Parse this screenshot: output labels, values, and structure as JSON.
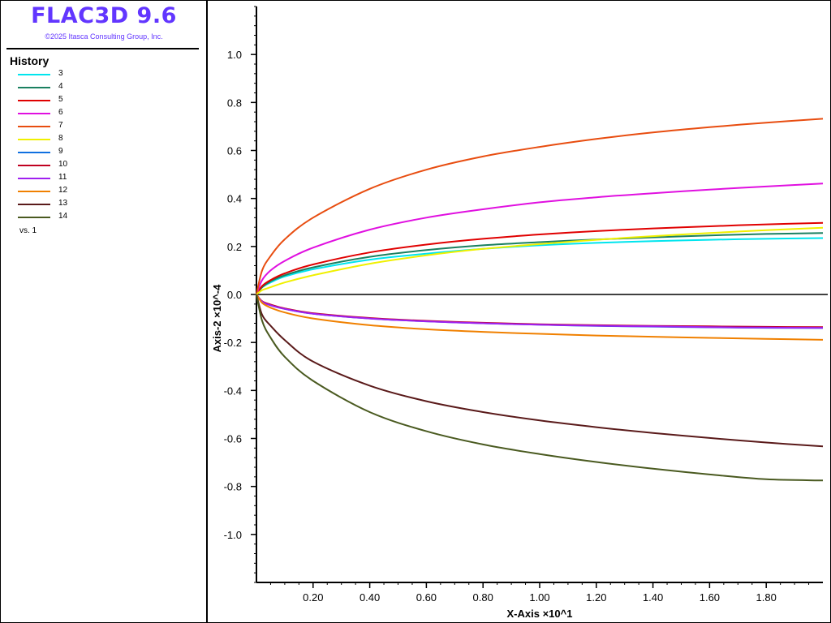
{
  "app": {
    "title": "FLAC3D 9.6",
    "copyright": "©2025 Itasca Consulting Group, Inc."
  },
  "legend": {
    "heading": "History",
    "vs_label": "vs. 1"
  },
  "chart_data": {
    "type": "line",
    "xlabel": "X-Axis ×10^1",
    "ylabel": "Axis-2 ×10^-4",
    "xlim": [
      0,
      2.0
    ],
    "ylim": [
      -1.2,
      1.2
    ],
    "x_ticks": [
      0.2,
      0.4,
      0.6,
      0.8,
      1.0,
      1.2,
      1.4,
      1.6,
      1.8
    ],
    "x_tick_labels": [
      "0.20",
      "0.40",
      "0.60",
      "0.80",
      "1.00",
      "1.20",
      "1.40",
      "1.60",
      "1.80"
    ],
    "y_ticks": [
      1.0,
      0.8,
      0.6,
      0.4,
      0.2,
      0.0,
      -0.2,
      -0.4,
      -0.6,
      -0.8,
      -1.0
    ],
    "y_tick_labels": [
      "1.0",
      "0.8",
      "0.6",
      "0.4",
      "0.2",
      "0.0",
      "-0.2",
      "-0.4",
      "-0.6",
      "-0.8",
      "-1.0"
    ],
    "zero_line": true,
    "grid": false,
    "legend_position": "left-panel",
    "x": [
      0,
      0.02,
      0.05,
      0.1,
      0.2,
      0.4,
      0.6,
      0.8,
      1.0,
      1.2,
      1.4,
      1.6,
      1.8,
      2.0
    ],
    "series": [
      {
        "name": "3",
        "color": "#00e5ee",
        "values": [
          0,
          0.03,
          0.05,
          0.075,
          0.105,
          0.145,
          0.17,
          0.19,
          0.205,
          0.215,
          0.222,
          0.228,
          0.232,
          0.235
        ]
      },
      {
        "name": "4",
        "color": "#1a8060",
        "values": [
          0,
          0.03,
          0.055,
          0.08,
          0.113,
          0.157,
          0.185,
          0.205,
          0.218,
          0.229,
          0.238,
          0.246,
          0.252,
          0.256
        ]
      },
      {
        "name": "5",
        "color": "#e00000",
        "values": [
          0,
          0.035,
          0.06,
          0.088,
          0.125,
          0.175,
          0.208,
          0.232,
          0.25,
          0.264,
          0.275,
          0.284,
          0.292,
          0.298
        ]
      },
      {
        "name": "6",
        "color": "#e010e0",
        "values": [
          0,
          0.06,
          0.1,
          0.14,
          0.195,
          0.27,
          0.32,
          0.355,
          0.384,
          0.405,
          0.422,
          0.437,
          0.45,
          0.462
        ]
      },
      {
        "name": "7",
        "color": "#e84d10",
        "values": [
          0,
          0.1,
          0.16,
          0.23,
          0.32,
          0.44,
          0.52,
          0.575,
          0.615,
          0.648,
          0.675,
          0.697,
          0.716,
          0.732
        ]
      },
      {
        "name": "8",
        "color": "#f0f000",
        "values": [
          0,
          0.018,
          0.03,
          0.05,
          0.08,
          0.128,
          0.163,
          0.19,
          0.21,
          0.228,
          0.243,
          0.256,
          0.268,
          0.278
        ]
      },
      {
        "name": "9",
        "color": "#1070e0",
        "values": [
          0,
          -0.03,
          -0.045,
          -0.06,
          -0.08,
          -0.1,
          -0.112,
          -0.12,
          -0.126,
          -0.131,
          -0.134,
          -0.137,
          -0.139,
          -0.14
        ]
      },
      {
        "name": "10",
        "color": "#c00020",
        "values": [
          0,
          -0.028,
          -0.042,
          -0.058,
          -0.078,
          -0.098,
          -0.11,
          -0.118,
          -0.124,
          -0.128,
          -0.131,
          -0.133,
          -0.135,
          -0.136
        ]
      },
      {
        "name": "11",
        "color": "#a020f0",
        "values": [
          0,
          -0.03,
          -0.045,
          -0.06,
          -0.08,
          -0.1,
          -0.112,
          -0.12,
          -0.126,
          -0.13,
          -0.133,
          -0.136,
          -0.138,
          -0.139
        ]
      },
      {
        "name": "12",
        "color": "#f08000",
        "values": [
          0,
          -0.035,
          -0.055,
          -0.075,
          -0.1,
          -0.128,
          -0.145,
          -0.156,
          -0.164,
          -0.171,
          -0.176,
          -0.181,
          -0.185,
          -0.189
        ]
      },
      {
        "name": "13",
        "color": "#5a1a1a",
        "values": [
          0,
          -0.085,
          -0.13,
          -0.19,
          -0.28,
          -0.38,
          -0.445,
          -0.49,
          -0.525,
          -0.553,
          -0.577,
          -0.598,
          -0.617,
          -0.633
        ]
      },
      {
        "name": "14",
        "color": "#4a5a20",
        "values": [
          0,
          -0.11,
          -0.18,
          -0.26,
          -0.36,
          -0.49,
          -0.57,
          -0.625,
          -0.665,
          -0.698,
          -0.726,
          -0.75,
          -0.77,
          -0.775
        ]
      }
    ]
  }
}
